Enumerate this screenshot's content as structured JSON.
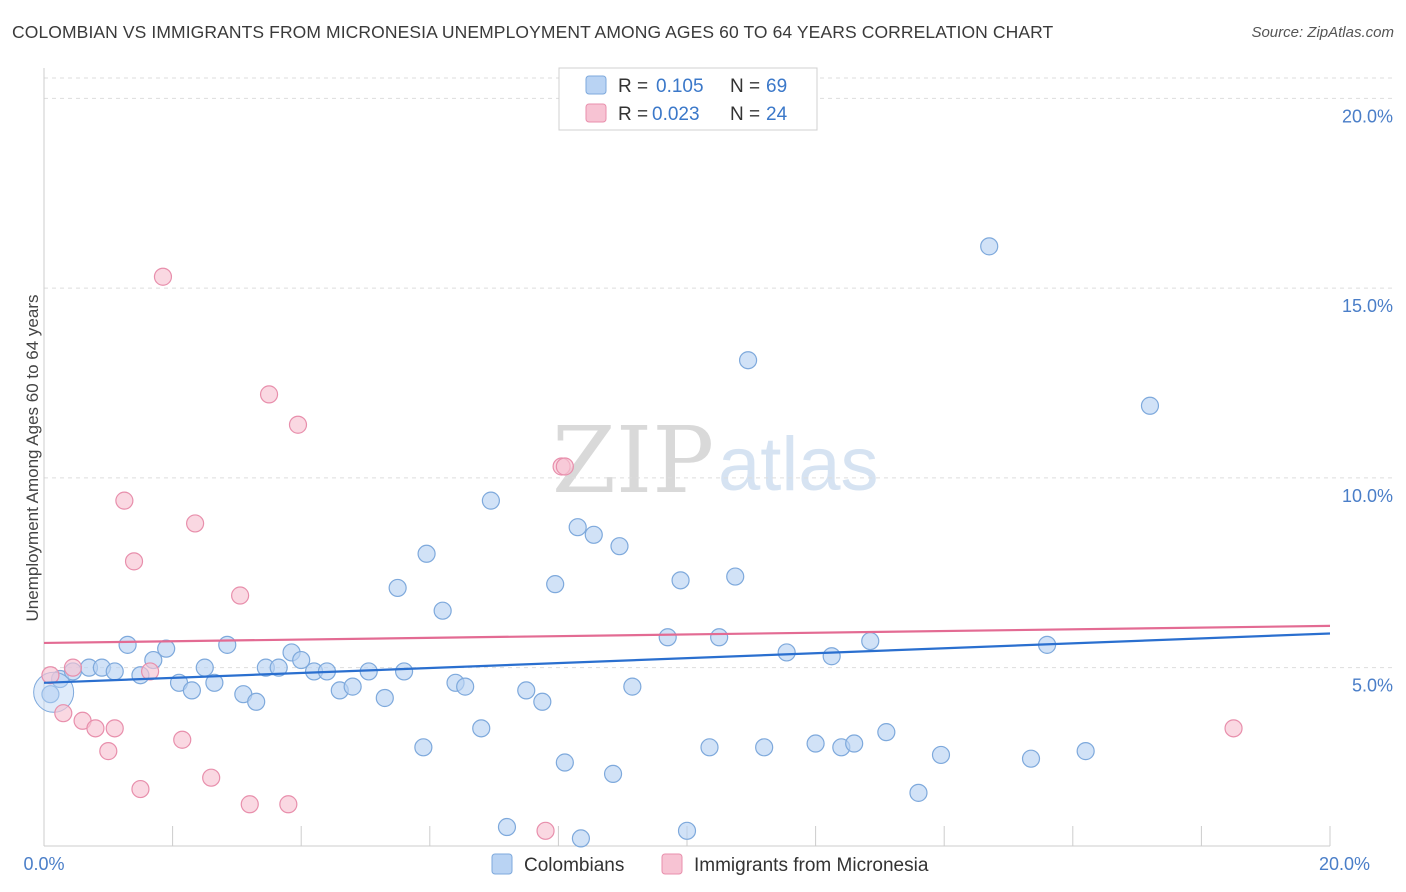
{
  "title": "COLOMBIAN VS IMMIGRANTS FROM MICRONESIA UNEMPLOYMENT AMONG AGES 60 TO 64 YEARS CORRELATION CHART",
  "source": "Source: ZipAtlas.com",
  "watermark": {
    "zip": "ZIP",
    "atlas": "atlas"
  },
  "colors": {
    "blue_fill": "#b9d3f3",
    "blue_stroke": "#7ea9dc",
    "blue_line": "#2a6fcf",
    "pink_fill": "#f7c3d3",
    "pink_stroke": "#e88fac",
    "pink_line": "#e36b93",
    "grid": "#dddddd",
    "axis_text": "#4a7ec8"
  },
  "legend": {
    "rows": [
      {
        "r_label": "R =",
        "r_value": "0.105",
        "n_label": "N =",
        "n_value": "69"
      },
      {
        "r_label": "R =",
        "r_value": "0.023",
        "n_label": "N =",
        "n_value": "24"
      }
    ]
  },
  "chart_data": {
    "type": "scatter",
    "title": "COLOMBIAN VS IMMIGRANTS FROM MICRONESIA UNEMPLOYMENT AMONG AGES 60 TO 64 YEARS CORRELATION CHART",
    "xlabel": "",
    "ylabel": "Unemployment Among Ages 60 to 64 years",
    "xlim": [
      0,
      20
    ],
    "ylim": [
      0.3,
      20.8
    ],
    "x_tick_labels": [
      "0.0%",
      "20.0%"
    ],
    "y_ticks": [
      5,
      10,
      15,
      20
    ],
    "y_tick_labels": [
      "5.0%",
      "10.0%",
      "15.0%",
      "20.0%"
    ],
    "legend_position": "top-center",
    "series": [
      {
        "name": "Colombians",
        "color": "#b9d3f3",
        "trend": {
          "x": [
            0,
            20
          ],
          "y": [
            4.6,
            5.9
          ]
        },
        "points": [
          [
            0.1,
            4.3
          ],
          [
            0.25,
            4.7
          ],
          [
            0.45,
            4.9
          ],
          [
            0.7,
            5.0
          ],
          [
            0.9,
            5.0
          ],
          [
            1.1,
            4.9
          ],
          [
            1.3,
            5.6
          ],
          [
            1.5,
            4.8
          ],
          [
            1.7,
            5.2
          ],
          [
            1.9,
            5.5
          ],
          [
            2.1,
            4.6
          ],
          [
            2.3,
            4.4
          ],
          [
            2.5,
            5.0
          ],
          [
            2.65,
            4.6
          ],
          [
            2.85,
            5.6
          ],
          [
            3.1,
            4.3
          ],
          [
            3.3,
            4.1
          ],
          [
            3.45,
            5.0
          ],
          [
            3.65,
            5.0
          ],
          [
            3.85,
            5.4
          ],
          [
            4.0,
            5.2
          ],
          [
            4.2,
            4.9
          ],
          [
            4.4,
            4.9
          ],
          [
            4.6,
            4.4
          ],
          [
            4.8,
            4.5
          ],
          [
            5.05,
            4.9
          ],
          [
            5.3,
            4.2
          ],
          [
            5.5,
            7.1
          ],
          [
            5.6,
            4.9
          ],
          [
            5.9,
            2.9
          ],
          [
            5.95,
            8.0
          ],
          [
            6.2,
            6.5
          ],
          [
            6.4,
            4.6
          ],
          [
            6.55,
            4.5
          ],
          [
            6.8,
            3.4
          ],
          [
            6.95,
            9.4
          ],
          [
            7.2,
            0.8
          ],
          [
            7.5,
            4.4
          ],
          [
            7.75,
            4.1
          ],
          [
            7.95,
            7.2
          ],
          [
            8.1,
            2.5
          ],
          [
            8.3,
            8.7
          ],
          [
            8.35,
            0.5
          ],
          [
            8.55,
            8.5
          ],
          [
            8.85,
            2.2
          ],
          [
            8.95,
            8.2
          ],
          [
            9.15,
            4.5
          ],
          [
            9.7,
            5.8
          ],
          [
            9.9,
            7.3
          ],
          [
            10.0,
            0.7
          ],
          [
            10.35,
            2.9
          ],
          [
            10.5,
            5.8
          ],
          [
            10.75,
            7.4
          ],
          [
            10.95,
            13.1
          ],
          [
            11.2,
            2.9
          ],
          [
            11.55,
            5.4
          ],
          [
            12.0,
            3.0
          ],
          [
            12.25,
            5.3
          ],
          [
            12.4,
            2.9
          ],
          [
            12.6,
            3.0
          ],
          [
            12.85,
            5.7
          ],
          [
            13.1,
            3.3
          ],
          [
            13.6,
            1.7
          ],
          [
            13.95,
            2.7
          ],
          [
            14.7,
            16.1
          ],
          [
            15.35,
            2.6
          ],
          [
            15.6,
            5.6
          ],
          [
            16.2,
            2.8
          ],
          [
            17.2,
            11.9
          ]
        ]
      },
      {
        "name": "Immigrants from Micronesia",
        "color": "#f7c3d3",
        "trend": {
          "x": [
            0,
            20
          ],
          "y": [
            5.65,
            6.1
          ]
        },
        "points": [
          [
            0.1,
            4.8
          ],
          [
            0.3,
            3.8
          ],
          [
            0.45,
            5.0
          ],
          [
            0.6,
            3.6
          ],
          [
            0.8,
            3.4
          ],
          [
            1.0,
            2.8
          ],
          [
            1.1,
            3.4
          ],
          [
            1.25,
            9.4
          ],
          [
            1.4,
            7.8
          ],
          [
            1.5,
            1.8
          ],
          [
            1.65,
            4.9
          ],
          [
            1.85,
            15.3
          ],
          [
            2.15,
            3.1
          ],
          [
            2.35,
            8.8
          ],
          [
            2.6,
            2.1
          ],
          [
            3.05,
            6.9
          ],
          [
            3.2,
            1.4
          ],
          [
            3.5,
            12.2
          ],
          [
            3.8,
            1.4
          ],
          [
            3.95,
            11.4
          ],
          [
            7.8,
            0.7
          ],
          [
            8.05,
            10.3
          ],
          [
            8.1,
            10.3
          ],
          [
            18.5,
            3.4
          ]
        ]
      }
    ]
  }
}
